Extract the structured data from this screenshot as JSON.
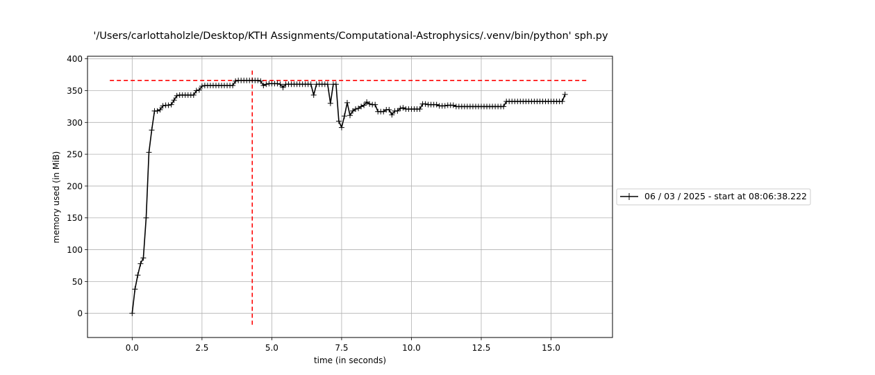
{
  "chart_data": {
    "type": "line",
    "title": "'/Users/carlottaholzle/Desktop/KTH Assignments/Computational-Astrophysics/.venv/bin/python' sph.py",
    "xlabel": "time (in seconds)",
    "ylabel": "memory used (in MiB)",
    "xlim": [
      -1.6,
      17.2
    ],
    "ylim": [
      -38,
      404
    ],
    "xticks": [
      0.0,
      2.5,
      5.0,
      7.5,
      10.0,
      12.5,
      15.0
    ],
    "xtick_labels": [
      "0.0",
      "2.5",
      "5.0",
      "7.5",
      "10.0",
      "12.5",
      "15.0"
    ],
    "yticks": [
      0,
      50,
      100,
      150,
      200,
      250,
      300,
      350,
      400
    ],
    "ytick_labels": [
      "0",
      "50",
      "100",
      "150",
      "200",
      "250",
      "300",
      "350",
      "400"
    ],
    "grid": true,
    "legend_position": "outside-right",
    "series": [
      {
        "name": "06 / 03 / 2025 - start at 08:06:38.222",
        "color": "#000000",
        "marker": "+",
        "x": [
          0.0,
          0.1,
          0.2,
          0.3,
          0.4,
          0.5,
          0.6,
          0.7,
          0.8,
          0.9,
          1.0,
          1.1,
          1.2,
          1.3,
          1.4,
          1.5,
          1.6,
          1.7,
          1.8,
          1.9,
          2.0,
          2.1,
          2.2,
          2.3,
          2.4,
          2.5,
          2.6,
          2.7,
          2.8,
          2.9,
          3.0,
          3.1,
          3.2,
          3.3,
          3.4,
          3.5,
          3.6,
          3.7,
          3.8,
          3.9,
          4.0,
          4.1,
          4.2,
          4.3,
          4.4,
          4.5,
          4.6,
          4.7,
          4.8,
          4.9,
          5.0,
          5.1,
          5.2,
          5.3,
          5.4,
          5.5,
          5.6,
          5.7,
          5.8,
          5.9,
          6.0,
          6.1,
          6.2,
          6.3,
          6.4,
          6.5,
          6.6,
          6.7,
          6.8,
          6.9,
          7.0,
          7.1,
          7.2,
          7.3,
          7.4,
          7.5,
          7.6,
          7.7,
          7.8,
          7.9,
          8.0,
          8.1,
          8.2,
          8.3,
          8.4,
          8.5,
          8.6,
          8.7,
          8.8,
          8.9,
          9.0,
          9.1,
          9.2,
          9.3,
          9.4,
          9.5,
          9.6,
          9.7,
          9.8,
          9.9,
          10.0,
          10.1,
          10.2,
          10.3,
          10.4,
          10.5,
          10.6,
          10.7,
          10.8,
          10.9,
          11.0,
          11.1,
          11.2,
          11.3,
          11.4,
          11.5,
          11.6,
          11.7,
          11.8,
          11.9,
          12.0,
          12.1,
          12.2,
          12.3,
          12.4,
          12.5,
          12.6,
          12.7,
          12.8,
          12.9,
          13.0,
          13.1,
          13.2,
          13.3,
          13.4,
          13.5,
          13.6,
          13.7,
          13.8,
          13.9,
          14.0,
          14.1,
          14.2,
          14.3,
          14.4,
          14.5,
          14.6,
          14.7,
          14.8,
          14.9,
          15.0,
          15.1,
          15.2,
          15.3,
          15.4,
          15.5
        ],
        "y": [
          0,
          38,
          60,
          78,
          87,
          150,
          253,
          288,
          318,
          318,
          320,
          326,
          327,
          327,
          328,
          335,
          342,
          343,
          343,
          343,
          343,
          343,
          343,
          350,
          351,
          357,
          358,
          358,
          358,
          358,
          358,
          358,
          358,
          358,
          358,
          358,
          358,
          365,
          366,
          366,
          366,
          366,
          366,
          366,
          366,
          366,
          365,
          358,
          360,
          361,
          361,
          361,
          361,
          360,
          355,
          360,
          360,
          360,
          360,
          360,
          360,
          360,
          360,
          360,
          360,
          343,
          360,
          360,
          360,
          360,
          360,
          330,
          360,
          360,
          302,
          292,
          310,
          331,
          311,
          318,
          321,
          322,
          325,
          327,
          332,
          329,
          328,
          328,
          317,
          317,
          317,
          320,
          320,
          312,
          318,
          318,
          322,
          323,
          321,
          321,
          321,
          321,
          321,
          321,
          329,
          329,
          328,
          328,
          328,
          328,
          326,
          326,
          326,
          327,
          327,
          327,
          325,
          325,
          325,
          325,
          325,
          325,
          325,
          325,
          325,
          325,
          325,
          325,
          325,
          325,
          325,
          325,
          325,
          325,
          333,
          333,
          333,
          333,
          333,
          333,
          333,
          333,
          333,
          333,
          333,
          333,
          333,
          333,
          333,
          333,
          333,
          333,
          333,
          333,
          333,
          344
        ]
      }
    ],
    "reference_lines": [
      {
        "orientation": "horizontal",
        "y": 366,
        "x_from": -0.8,
        "x_to": 16.3,
        "color": "#ff0000",
        "style": "dashed"
      },
      {
        "orientation": "vertical",
        "x": 4.3,
        "y_from": -18,
        "y_to": 384,
        "color": "#ff0000",
        "style": "dashed"
      }
    ]
  }
}
